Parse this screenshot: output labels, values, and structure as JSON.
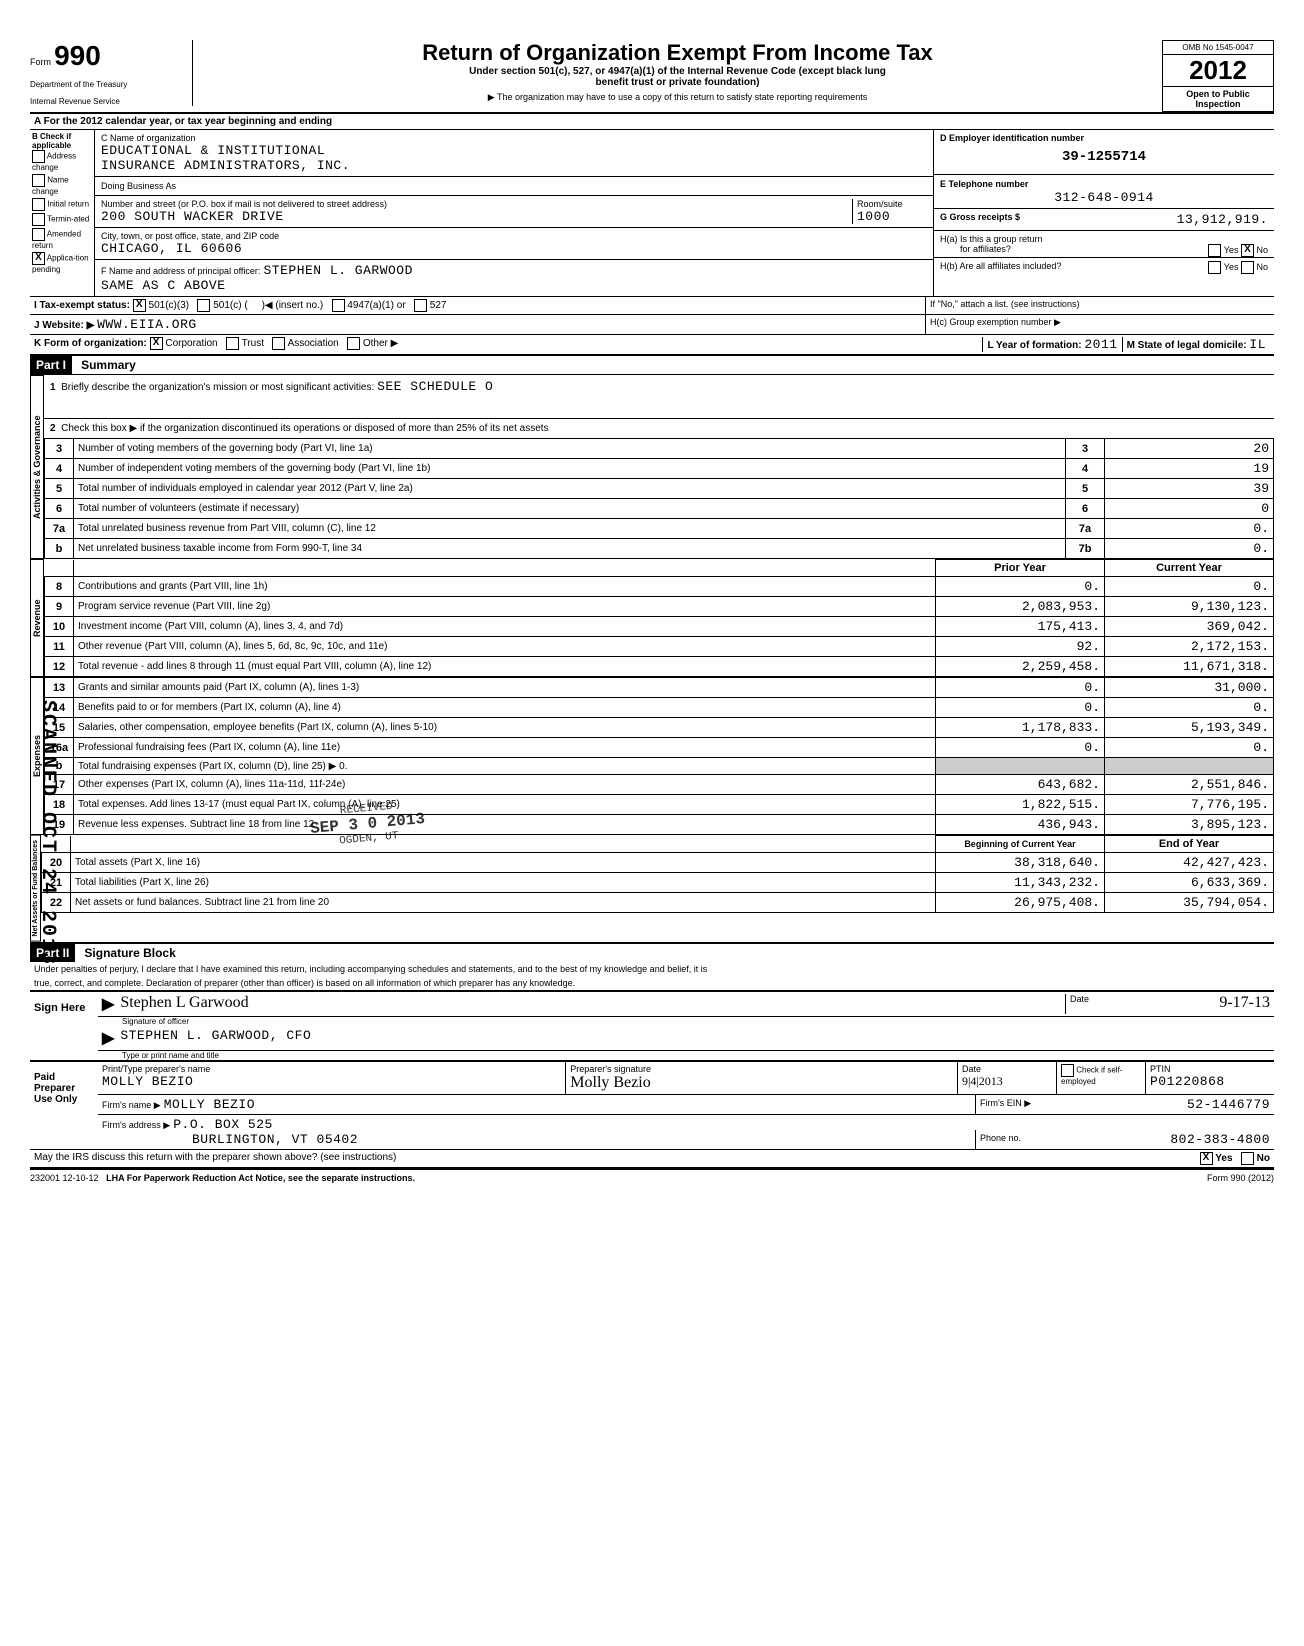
{
  "header": {
    "form_prefix": "Form",
    "form_number": "990",
    "dept1": "Department of the Treasury",
    "dept2": "Internal Revenue Service",
    "title": "Return of Organization Exempt From Income Tax",
    "subtitle1": "Under section 501(c), 527, or 4947(a)(1) of the Internal Revenue Code (except black lung",
    "subtitle2": "benefit trust or private foundation)",
    "subtitle3": "▶ The organization may have to use a copy of this return to satisfy state reporting requirements",
    "omb": "OMB No  1545-0047",
    "year": "2012",
    "open": "Open to Public",
    "inspection": "Inspection"
  },
  "row_a": "A For the 2012 calendar year, or tax year beginning                                               and ending",
  "check_b": {
    "title": "B  Check if applicable",
    "items": [
      "Address change",
      "Name change",
      "Initial return",
      "Termin-ated",
      "Amended return",
      "Applica-tion pending"
    ]
  },
  "org": {
    "c_label": "C Name of organization",
    "name1": "EDUCATIONAL & INSTITUTIONAL",
    "name2": "INSURANCE ADMINISTRATORS, INC.",
    "dba_label": "Doing Business As",
    "addr_label": "Number and street (or P.O. box if mail is not delivered to street address)",
    "addr": "200 SOUTH WACKER DRIVE",
    "room_label": "Room/suite",
    "room": "1000",
    "city_label": "City, town, or post office, state, and ZIP code",
    "city": "CHICAGO, IL    60606",
    "f_label": "F Name and address of principal officer:",
    "officer": "STEPHEN L. GARWOOD",
    "officer_addr": "SAME AS C ABOVE"
  },
  "right": {
    "d_label": "D  Employer identification number",
    "ein": "39-1255714",
    "e_label": "E  Telephone number",
    "phone": "312-648-0914",
    "g_label": "G  Gross receipts $",
    "gross": "13,912,919.",
    "h_a": "H(a) Is this a group return",
    "h_a2": "for affiliates?",
    "h_b": "H(b) Are all affiliates included?",
    "h_note": "If \"No,\" attach a list. (see instructions)",
    "h_c": "H(c) Group exemption number ▶"
  },
  "status": {
    "i_label": "I  Tax-exempt status:",
    "opt1": "501(c)(3)",
    "opt2": "501(c) (",
    "opt2_note": ")◀  (insert no.)",
    "opt3": "4947(a)(1) or",
    "opt4": "527",
    "j_label": "J  Website: ▶",
    "website": "WWW.EIIA.ORG",
    "k_label": "K Form of organization:",
    "k_opts": [
      "Corporation",
      "Trust",
      "Association",
      "Other ▶"
    ],
    "l_label": "L Year of formation:",
    "l_val": "2011",
    "m_label": "M State of legal domicile:",
    "m_val": "IL"
  },
  "part1": {
    "header": "Part I",
    "title": "Summary",
    "side_gov": "Activities & Governance",
    "side_rev": "Revenue",
    "side_exp": "Expenses",
    "side_net": "Net Assets or Fund Balances",
    "line1": "Briefly describe the organization's mission or most significant activities:",
    "line1_val": "SEE SCHEDULE O",
    "line2": "Check this box ▶         if the organization discontinued its operations or disposed of more than 25% of its net assets",
    "lines_gov": [
      {
        "n": "3",
        "d": "Number of voting members of the governing body (Part VI, line 1a)",
        "c": "3",
        "v": "20"
      },
      {
        "n": "4",
        "d": "Number of independent voting members of the governing body (Part VI, line 1b)",
        "c": "4",
        "v": "19"
      },
      {
        "n": "5",
        "d": "Total number of individuals employed in calendar year 2012 (Part V, line 2a)",
        "c": "5",
        "v": "39"
      },
      {
        "n": "6",
        "d": "Total number of volunteers (estimate if necessary)",
        "c": "6",
        "v": "0"
      },
      {
        "n": "7a",
        "d": "Total unrelated business revenue from Part VIII, column (C), line 12",
        "c": "7a",
        "v": "0."
      },
      {
        "n": "b",
        "d": "Net unrelated business taxable income from Form 990-T, line 34",
        "c": "7b",
        "v": "0."
      }
    ],
    "col_prior": "Prior Year",
    "col_current": "Current Year",
    "lines_rev": [
      {
        "n": "8",
        "d": "Contributions and grants (Part VIII, line 1h)",
        "p": "0.",
        "c": "0."
      },
      {
        "n": "9",
        "d": "Program service revenue (Part VIII, line 2g)",
        "p": "2,083,953.",
        "c": "9,130,123."
      },
      {
        "n": "10",
        "d": "Investment income (Part VIII, column (A), lines 3, 4, and 7d)",
        "p": "175,413.",
        "c": "369,042."
      },
      {
        "n": "11",
        "d": "Other revenue (Part VIII, column (A), lines 5, 6d, 8c, 9c, 10c, and 11e)",
        "p": "92.",
        "c": "2,172,153."
      },
      {
        "n": "12",
        "d": "Total revenue - add lines 8 through 11 (must equal Part VIII, column (A), line 12)",
        "p": "2,259,458.",
        "c": "11,671,318."
      }
    ],
    "lines_exp": [
      {
        "n": "13",
        "d": "Grants and similar amounts paid (Part IX, column (A), lines 1-3)",
        "p": "0.",
        "c": "31,000."
      },
      {
        "n": "14",
        "d": "Benefits paid to or for members (Part IX, column (A), line 4)",
        "p": "0.",
        "c": "0."
      },
      {
        "n": "15",
        "d": "Salaries, other compensation, employee benefits (Part IX, column (A), lines 5-10)",
        "p": "1,178,833.",
        "c": "5,193,349."
      },
      {
        "n": "16a",
        "d": "Professional fundraising fees (Part IX, column (A), line 11e)",
        "p": "0.",
        "c": "0."
      },
      {
        "n": "b",
        "d": "Total fundraising expenses (Part IX, column (D), line 25) ▶                              0.",
        "p": "",
        "c": ""
      },
      {
        "n": "17",
        "d": "Other expenses (Part IX, column (A), lines 11a-11d, 11f-24e)",
        "p": "643,682.",
        "c": "2,551,846."
      },
      {
        "n": "18",
        "d": "Total expenses. Add lines 13-17 (must equal Part IX, column (A), line 25)",
        "p": "1,822,515.",
        "c": "7,776,195."
      },
      {
        "n": "19",
        "d": "Revenue less expenses. Subtract line 18 from line 12",
        "p": "436,943.",
        "c": "3,895,123."
      }
    ],
    "col_begin": "Beginning of Current Year",
    "col_end": "End of Year",
    "lines_net": [
      {
        "n": "20",
        "d": "Total assets (Part X, line 16)",
        "p": "38,318,640.",
        "c": "42,427,423."
      },
      {
        "n": "21",
        "d": "Total liabilities (Part X, line 26)",
        "p": "11,343,232.",
        "c": "6,633,369."
      },
      {
        "n": "22",
        "d": "Net assets or fund balances. Subtract line 21 from line 20",
        "p": "26,975,408.",
        "c": "35,794,054."
      }
    ]
  },
  "part2": {
    "header": "Part II",
    "title": "Signature Block",
    "jurat1": "Under penalties of perjury, I declare that I have examined this return, including accompanying schedules and statements, and to the best of my knowledge and belief, it is",
    "jurat2": "true, correct, and complete. Declaration of preparer (other than officer) is based on all information of which preparer has any knowledge."
  },
  "sign": {
    "label": "Sign Here",
    "sig_script": "Stephen L Garwood",
    "sig_label": "Signature of officer",
    "date_label": "Date",
    "date_val": "9-17-13",
    "name": "STEPHEN L. GARWOOD, CFO",
    "name_label": "Type or print name and title"
  },
  "preparer": {
    "label": "Paid Preparer Use Only",
    "col1": "Print/Type preparer's name",
    "name": "MOLLY BEZIO",
    "col2": "Preparer's signature",
    "sig_script": "Molly Bezio",
    "col3": "Date",
    "date": "9|4|2013",
    "col4_check": "Check       if self-employed",
    "col5": "PTIN",
    "ptin": "P01220868",
    "firm_label": "Firm's name  ▶",
    "firm": "MOLLY BEZIO",
    "ein_label": "Firm's EIN ▶",
    "ein": "52-1446779",
    "addr_label": "Firm's address ▶",
    "addr1": "P.O. BOX 525",
    "addr2": "BURLINGTON, VT 05402",
    "phone_label": "Phone no.",
    "phone": "802-383-4800"
  },
  "footer": {
    "discuss": "May the IRS discuss this return with the preparer shown above? (see instructions)",
    "yes": "Yes",
    "no": "No",
    "code": "232001  12-10-12",
    "lha": "LHA  For Paperwork Reduction Act Notice, see the separate instructions.",
    "form": "Form 990 (2012)"
  },
  "stamps": {
    "received": "RECEIVED",
    "received_date": "SEP 3 0 2013",
    "ogden": "OGDEN, UT",
    "scanned": "SCANNED OCT 24 2013"
  }
}
